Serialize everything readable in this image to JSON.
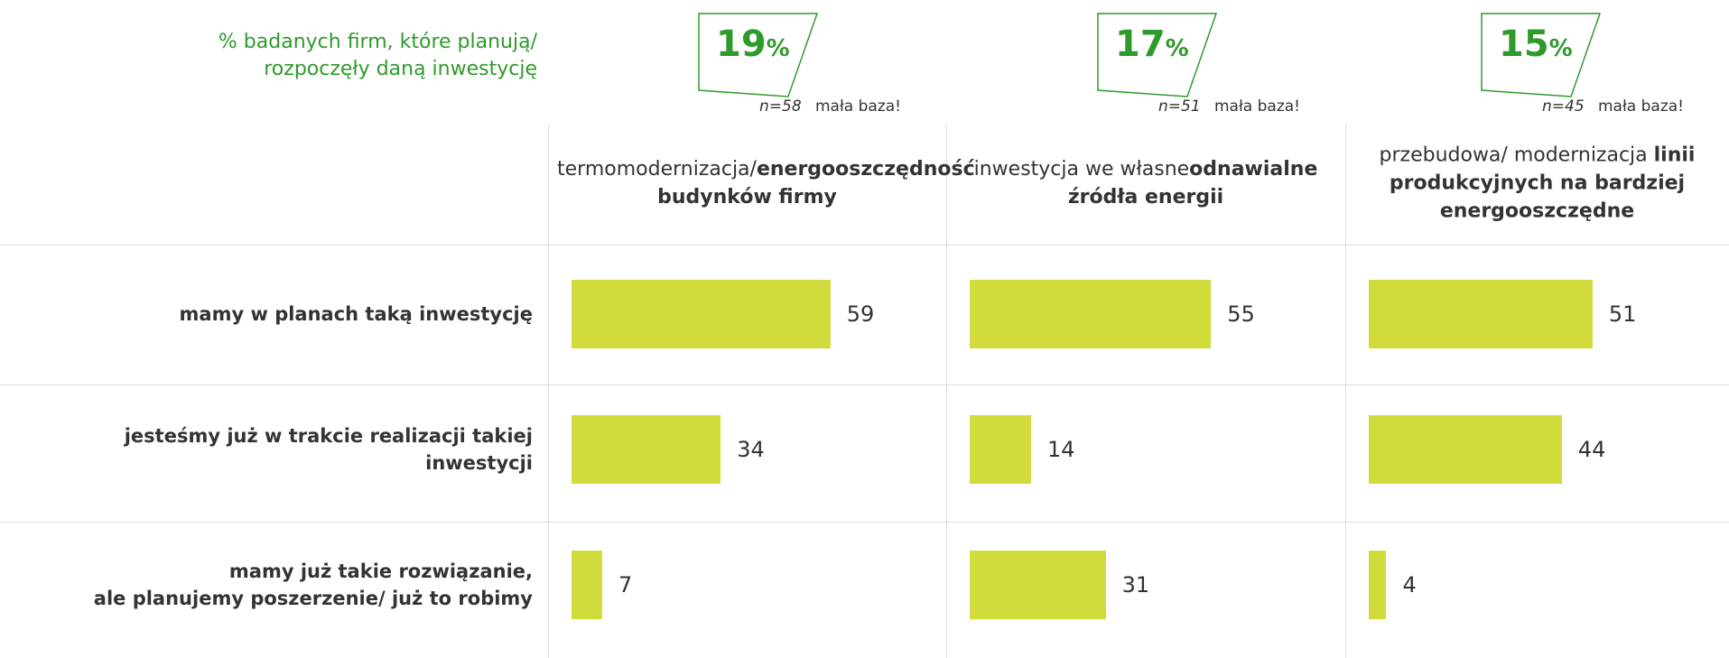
{
  "note": [
    "% badanych firm, które planują/",
    "rozpoczęły daną inwestycję"
  ],
  "categories": [
    "mamy w planach taką inwestycję",
    "jesteśmy już w trakcie realizacji takiej inwestycji",
    "mamy już takie rozwiązanie,\nale planujemy poszerzenie/ już to robimy"
  ],
  "chart_data": [
    {
      "type": "bar",
      "title": [
        "termomodernizacja/",
        "energooszczędność budynków firmy"
      ],
      "title_bold": [
        false,
        true
      ],
      "share": 19,
      "share_unit": "%",
      "n": "n=58",
      "base_note": "mała baza!",
      "values": [
        59,
        34,
        7
      ],
      "color": "#d1dc3c"
    },
    {
      "type": "bar",
      "title": [
        "inwestycja we własne",
        "odnawialne źródła energii"
      ],
      "title_bold": [
        false,
        true
      ],
      "share": 17,
      "share_unit": "%",
      "n": "n=51",
      "base_note": "mała baza!",
      "values": [
        55,
        14,
        31
      ],
      "color": "#d1dc3c"
    },
    {
      "type": "bar",
      "title": [
        "przebudowa/ modernizacja ",
        "linii produkcyjnych na bardziej energooszczędne"
      ],
      "title_bold": [
        false,
        true
      ],
      "share": 15,
      "share_unit": "%",
      "n": "n=45",
      "base_note": "mała baza!",
      "values": [
        51,
        44,
        4
      ],
      "color": "#d1dc3c"
    }
  ]
}
